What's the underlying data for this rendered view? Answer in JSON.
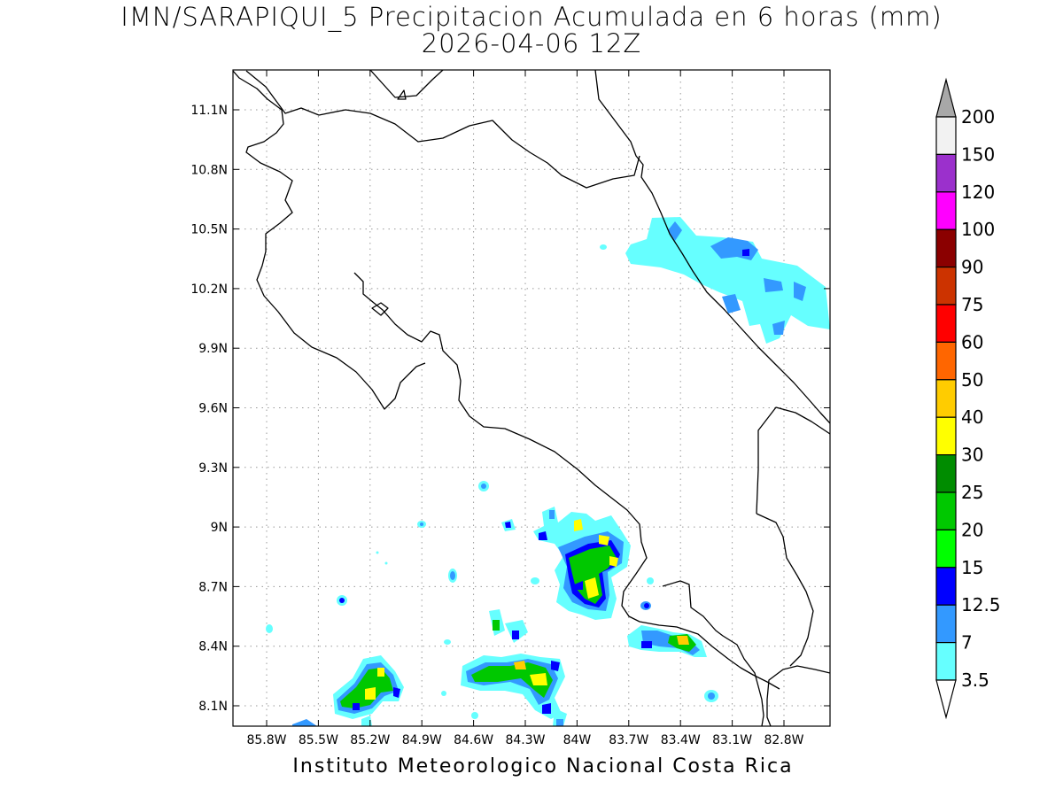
{
  "title": {
    "line1": "IMN/SARAPIQUI_5 Precipitacion Acumulada en 6 horas (mm)",
    "line2": "2026-04-06 12Z"
  },
  "footer": "Instituto Meteorologico Nacional Costa Rica",
  "map": {
    "lat_labels": [
      "11.1N",
      "10.8N",
      "10.5N",
      "10.2N",
      "9.9N",
      "9.6N",
      "9.3N",
      "9N",
      "8.7N",
      "8.4N",
      "8.1N"
    ],
    "lon_labels": [
      "85.8W",
      "85.5W",
      "85.2W",
      "84.9W",
      "84.6W",
      "84.3W",
      "84W",
      "83.7W",
      "83.4W",
      "83.1W",
      "82.8W"
    ],
    "grid": true
  },
  "colorbar": {
    "labels": [
      "200",
      "150",
      "120",
      "100",
      "90",
      "75",
      "60",
      "50",
      "40",
      "30",
      "25",
      "20",
      "15",
      "12.5",
      "7",
      "3.5"
    ],
    "colors": [
      "#f2f2f2",
      "#9b30cc",
      "#ff00ff",
      "#8b0000",
      "#cc3300",
      "#ff0000",
      "#ff6600",
      "#ffcc00",
      "#ffff00",
      "#008c00",
      "#00c800",
      "#00ff00",
      "#0000ff",
      "#3399ff",
      "#66ffff"
    ],
    "top_arrow_color": "#a8a8a8",
    "bottom_arrow_color": "#ffffff"
  }
}
